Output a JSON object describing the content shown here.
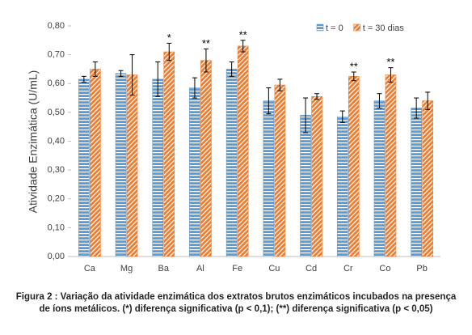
{
  "chart_data": {
    "type": "bar",
    "ylabel": "Atividade Enzimática (U/mL)",
    "categories": [
      "Ca",
      "Mg",
      "Ba",
      "Al",
      "Fe",
      "Cu",
      "Cd",
      "Cr",
      "Co",
      "Pb"
    ],
    "series": [
      {
        "name": "t = 0",
        "color": "#5b9bd5",
        "pattern": "horizontal",
        "values": [
          0.615,
          0.635,
          0.615,
          0.585,
          0.65,
          0.54,
          0.49,
          0.485,
          0.54,
          0.515
        ],
        "errors": [
          0.01,
          0.01,
          0.06,
          0.035,
          0.025,
          0.045,
          0.06,
          0.02,
          0.025,
          0.035
        ]
      },
      {
        "name": "t = 30 dias",
        "color": "#ed7d31",
        "pattern": "diagonal",
        "values": [
          0.65,
          0.63,
          0.71,
          0.68,
          0.73,
          0.595,
          0.555,
          0.625,
          0.63,
          0.54
        ],
        "errors": [
          0.025,
          0.07,
          0.03,
          0.04,
          0.02,
          0.02,
          0.01,
          0.015,
          0.025,
          0.03
        ],
        "significance": [
          null,
          null,
          "*",
          "**",
          "**",
          null,
          null,
          "**",
          "**",
          null
        ]
      }
    ],
    "ylim": [
      0,
      0.8
    ],
    "yticks": [
      {
        "value": 0,
        "label": "0,00"
      },
      {
        "value": 0.1,
        "label": "0,10"
      },
      {
        "value": 0.2,
        "label": "0,20"
      },
      {
        "value": 0.3,
        "label": "0,30"
      },
      {
        "value": 0.4,
        "label": "0,40"
      },
      {
        "value": 0.5,
        "label": "0,50"
      },
      {
        "value": 0.6,
        "label": "0,60"
      },
      {
        "value": 0.7,
        "label": "0,70"
      },
      {
        "value": 0.8,
        "label": "0,80"
      }
    ],
    "legend": "top-right",
    "caption": "Figura 2 : Variação da atividade enzimática dos extratos brutos enzimáticos incubados na presença de íons metálicos. (*) diferença significativa (p < 0,1); (**) diferença significativa (p < 0,05)"
  }
}
